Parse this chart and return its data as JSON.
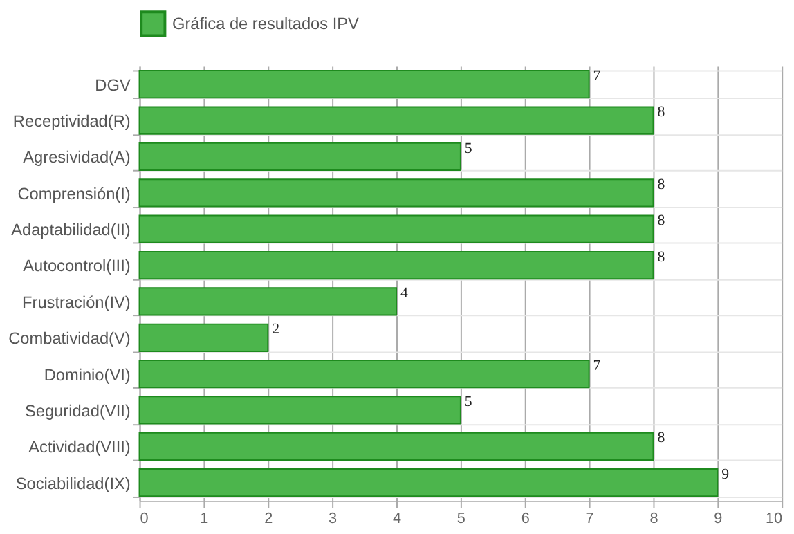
{
  "chart_data": {
    "type": "bar",
    "orientation": "horizontal",
    "categories": [
      "DGV",
      "Receptividad(R)",
      "Agresividad(A)",
      "Comprensión(I)",
      "Adaptabilidad(II)",
      "Autocontrol(III)",
      "Frustración(IV)",
      "Combatividad(V)",
      "Dominio(VI)",
      "Seguridad(VII)",
      "Actividad(VIII)",
      "Sociabilidad(IX)"
    ],
    "series": [
      {
        "name": "Gráfica de resultados IPV",
        "color": "#4cb54c",
        "values": [
          7,
          8,
          5,
          8,
          8,
          8,
          4,
          2,
          7,
          5,
          8,
          9
        ]
      }
    ],
    "xlim": [
      0,
      10
    ],
    "xticks": [
      0,
      1,
      2,
      3,
      4,
      5,
      6,
      7,
      8,
      9,
      10
    ],
    "data_labels": true,
    "grid": true,
    "legend": "top"
  }
}
